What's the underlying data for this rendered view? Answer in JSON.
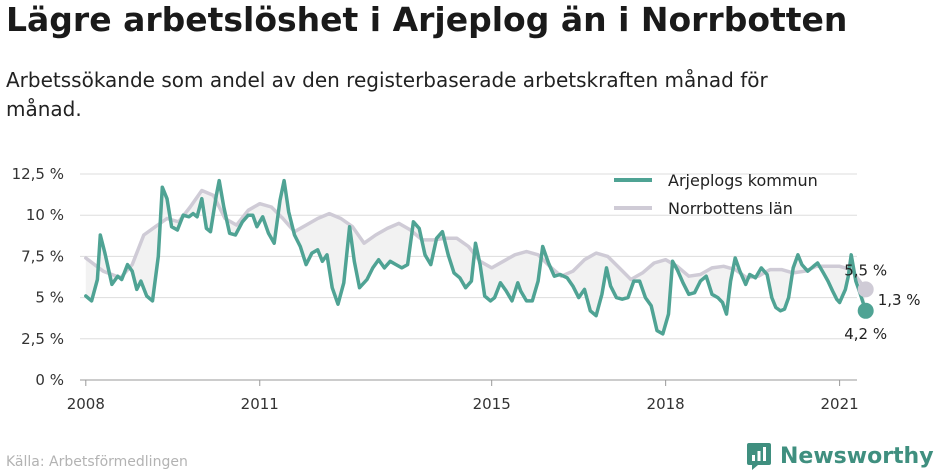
{
  "title": "Lägre arbetslöshet i Arjeplog än i Norrbotten",
  "subtitle": "Arbetssökande som andel av den registerbaserade arbetskraften månad för månad.",
  "source": "Källa: Arbetsförmedlingen",
  "brand": "Newsworthy",
  "colors": {
    "arjeplog": "#4fa394",
    "norrbotten": "#cfcbd6",
    "band": "#f2f2f2",
    "grid": "#dddddd",
    "brand": "#3f8f7f"
  },
  "chart_data": {
    "type": "line",
    "xlim": [
      2007.9,
      2021.3
    ],
    "ylim": [
      0,
      12.5
    ],
    "x_ticks": [
      {
        "value": 2008,
        "label": "2008"
      },
      {
        "value": 2011,
        "label": "2011"
      },
      {
        "value": 2015,
        "label": "2015"
      },
      {
        "value": 2018,
        "label": "2018"
      },
      {
        "value": 2021,
        "label": "2021"
      }
    ],
    "y_ticks": [
      {
        "value": 0,
        "label": "0 %"
      },
      {
        "value": 2.5,
        "label": "2,5 %"
      },
      {
        "value": 5,
        "label": "5 %"
      },
      {
        "value": 7.5,
        "label": "7,5 %"
      },
      {
        "value": 10,
        "label": "10 %"
      },
      {
        "value": 12.5,
        "label": "12,5 %"
      }
    ],
    "legend": [
      "Arjeplogs kommun",
      "Norrbottens län"
    ],
    "series": [
      {
        "name": "Arjeplogs kommun",
        "points": [
          [
            2008.0,
            5.1
          ],
          [
            2008.1,
            4.8
          ],
          [
            2008.2,
            6.1
          ],
          [
            2008.25,
            8.8
          ],
          [
            2008.33,
            7.7
          ],
          [
            2008.45,
            5.8
          ],
          [
            2008.55,
            6.3
          ],
          [
            2008.62,
            6.1
          ],
          [
            2008.72,
            7.0
          ],
          [
            2008.8,
            6.6
          ],
          [
            2008.88,
            5.5
          ],
          [
            2008.95,
            6.0
          ],
          [
            2009.05,
            5.1
          ],
          [
            2009.15,
            4.8
          ],
          [
            2009.25,
            7.5
          ],
          [
            2009.32,
            11.7
          ],
          [
            2009.4,
            11.0
          ],
          [
            2009.48,
            9.3
          ],
          [
            2009.58,
            9.1
          ],
          [
            2009.68,
            10.0
          ],
          [
            2009.78,
            9.9
          ],
          [
            2009.85,
            10.1
          ],
          [
            2009.92,
            9.9
          ],
          [
            2010.0,
            11.0
          ],
          [
            2010.08,
            9.2
          ],
          [
            2010.15,
            9.0
          ],
          [
            2010.25,
            11.2
          ],
          [
            2010.3,
            12.1
          ],
          [
            2010.38,
            10.5
          ],
          [
            2010.48,
            8.9
          ],
          [
            2010.58,
            8.8
          ],
          [
            2010.7,
            9.6
          ],
          [
            2010.8,
            10.0
          ],
          [
            2010.88,
            10.0
          ],
          [
            2010.95,
            9.3
          ],
          [
            2011.05,
            9.9
          ],
          [
            2011.15,
            8.9
          ],
          [
            2011.25,
            8.3
          ],
          [
            2011.35,
            10.9
          ],
          [
            2011.42,
            12.1
          ],
          [
            2011.5,
            10.2
          ],
          [
            2011.6,
            8.8
          ],
          [
            2011.7,
            8.1
          ],
          [
            2011.8,
            7.0
          ],
          [
            2011.9,
            7.7
          ],
          [
            2012.0,
            7.9
          ],
          [
            2012.08,
            7.2
          ],
          [
            2012.16,
            7.6
          ],
          [
            2012.25,
            5.6
          ],
          [
            2012.35,
            4.6
          ],
          [
            2012.45,
            5.9
          ],
          [
            2012.55,
            9.3
          ],
          [
            2012.63,
            7.2
          ],
          [
            2012.72,
            5.6
          ],
          [
            2012.85,
            6.1
          ],
          [
            2012.95,
            6.8
          ],
          [
            2013.05,
            7.3
          ],
          [
            2013.15,
            6.8
          ],
          [
            2013.25,
            7.2
          ],
          [
            2013.35,
            7.0
          ],
          [
            2013.45,
            6.8
          ],
          [
            2013.55,
            7.0
          ],
          [
            2013.65,
            9.6
          ],
          [
            2013.75,
            9.2
          ],
          [
            2013.85,
            7.6
          ],
          [
            2013.95,
            7.0
          ],
          [
            2014.05,
            8.6
          ],
          [
            2014.15,
            9.0
          ],
          [
            2014.25,
            7.6
          ],
          [
            2014.35,
            6.5
          ],
          [
            2014.45,
            6.2
          ],
          [
            2014.55,
            5.6
          ],
          [
            2014.65,
            6.0
          ],
          [
            2014.72,
            8.3
          ],
          [
            2014.8,
            7.0
          ],
          [
            2014.88,
            5.1
          ],
          [
            2014.98,
            4.8
          ],
          [
            2015.05,
            5.0
          ],
          [
            2015.15,
            5.9
          ],
          [
            2015.25,
            5.4
          ],
          [
            2015.35,
            4.8
          ],
          [
            2015.45,
            5.9
          ],
          [
            2015.5,
            5.4
          ],
          [
            2015.6,
            4.8
          ],
          [
            2015.7,
            4.8
          ],
          [
            2015.8,
            6.0
          ],
          [
            2015.88,
            8.1
          ],
          [
            2015.98,
            7.1
          ],
          [
            2016.08,
            6.3
          ],
          [
            2016.18,
            6.4
          ],
          [
            2016.3,
            6.2
          ],
          [
            2016.4,
            5.7
          ],
          [
            2016.5,
            5.0
          ],
          [
            2016.6,
            5.5
          ],
          [
            2016.7,
            4.2
          ],
          [
            2016.8,
            3.9
          ],
          [
            2016.9,
            5.2
          ],
          [
            2016.98,
            6.8
          ],
          [
            2017.05,
            5.7
          ],
          [
            2017.15,
            5.0
          ],
          [
            2017.25,
            4.9
          ],
          [
            2017.35,
            5.0
          ],
          [
            2017.45,
            6.0
          ],
          [
            2017.55,
            6.0
          ],
          [
            2017.65,
            5.0
          ],
          [
            2017.75,
            4.5
          ],
          [
            2017.85,
            3.0
          ],
          [
            2017.95,
            2.8
          ],
          [
            2018.05,
            4.0
          ],
          [
            2018.12,
            7.2
          ],
          [
            2018.2,
            6.7
          ],
          [
            2018.3,
            5.9
          ],
          [
            2018.4,
            5.2
          ],
          [
            2018.5,
            5.3
          ],
          [
            2018.6,
            6.0
          ],
          [
            2018.7,
            6.3
          ],
          [
            2018.8,
            5.2
          ],
          [
            2018.9,
            5.0
          ],
          [
            2018.98,
            4.7
          ],
          [
            2019.05,
            4.0
          ],
          [
            2019.12,
            6.0
          ],
          [
            2019.2,
            7.4
          ],
          [
            2019.28,
            6.6
          ],
          [
            2019.38,
            5.8
          ],
          [
            2019.45,
            6.4
          ],
          [
            2019.55,
            6.2
          ],
          [
            2019.65,
            6.8
          ],
          [
            2019.75,
            6.4
          ],
          [
            2019.83,
            5.0
          ],
          [
            2019.9,
            4.4
          ],
          [
            2019.98,
            4.2
          ],
          [
            2020.05,
            4.3
          ],
          [
            2020.12,
            5.0
          ],
          [
            2020.2,
            6.8
          ],
          [
            2020.28,
            7.6
          ],
          [
            2020.35,
            7.0
          ],
          [
            2020.45,
            6.6
          ],
          [
            2020.55,
            6.9
          ],
          [
            2020.62,
            7.1
          ],
          [
            2020.72,
            6.5
          ],
          [
            2020.8,
            6.0
          ],
          [
            2020.88,
            5.4
          ],
          [
            2020.95,
            4.9
          ],
          [
            2021.0,
            4.7
          ],
          [
            2021.1,
            5.5
          ],
          [
            2021.15,
            6.3
          ],
          [
            2021.2,
            7.6
          ],
          [
            2021.28,
            6.0
          ],
          [
            2021.35,
            5.3
          ],
          [
            2021.45,
            4.2
          ]
        ]
      },
      {
        "name": "Norrbottens län",
        "points": [
          [
            2008.0,
            7.4
          ],
          [
            2008.3,
            6.6
          ],
          [
            2008.6,
            6.2
          ],
          [
            2008.8,
            7.0
          ],
          [
            2009.0,
            8.8
          ],
          [
            2009.2,
            9.3
          ],
          [
            2009.4,
            9.8
          ],
          [
            2009.6,
            9.6
          ],
          [
            2009.8,
            10.5
          ],
          [
            2010.0,
            11.5
          ],
          [
            2010.2,
            11.2
          ],
          [
            2010.4,
            9.8
          ],
          [
            2010.6,
            9.4
          ],
          [
            2010.8,
            10.3
          ],
          [
            2011.0,
            10.7
          ],
          [
            2011.2,
            10.5
          ],
          [
            2011.4,
            9.8
          ],
          [
            2011.6,
            9.0
          ],
          [
            2011.8,
            9.4
          ],
          [
            2012.0,
            9.8
          ],
          [
            2012.2,
            10.1
          ],
          [
            2012.4,
            9.8
          ],
          [
            2012.6,
            9.3
          ],
          [
            2012.8,
            8.3
          ],
          [
            2013.0,
            8.8
          ],
          [
            2013.2,
            9.2
          ],
          [
            2013.4,
            9.5
          ],
          [
            2013.6,
            9.1
          ],
          [
            2013.8,
            8.5
          ],
          [
            2014.0,
            8.5
          ],
          [
            2014.2,
            8.6
          ],
          [
            2014.4,
            8.6
          ],
          [
            2014.6,
            8.1
          ],
          [
            2014.8,
            7.2
          ],
          [
            2015.0,
            6.8
          ],
          [
            2015.2,
            7.2
          ],
          [
            2015.4,
            7.6
          ],
          [
            2015.6,
            7.8
          ],
          [
            2015.8,
            7.6
          ],
          [
            2016.0,
            6.9
          ],
          [
            2016.2,
            6.3
          ],
          [
            2016.4,
            6.6
          ],
          [
            2016.6,
            7.3
          ],
          [
            2016.8,
            7.7
          ],
          [
            2017.0,
            7.5
          ],
          [
            2017.2,
            6.8
          ],
          [
            2017.4,
            6.1
          ],
          [
            2017.6,
            6.5
          ],
          [
            2017.8,
            7.1
          ],
          [
            2018.0,
            7.3
          ],
          [
            2018.2,
            6.9
          ],
          [
            2018.4,
            6.3
          ],
          [
            2018.6,
            6.4
          ],
          [
            2018.8,
            6.8
          ],
          [
            2019.0,
            6.9
          ],
          [
            2019.2,
            6.7
          ],
          [
            2019.4,
            6.2
          ],
          [
            2019.6,
            6.3
          ],
          [
            2019.8,
            6.7
          ],
          [
            2020.0,
            6.7
          ],
          [
            2020.2,
            6.5
          ],
          [
            2020.4,
            6.6
          ],
          [
            2020.6,
            6.9
          ],
          [
            2020.8,
            6.9
          ],
          [
            2021.0,
            6.9
          ],
          [
            2021.2,
            6.7
          ],
          [
            2021.45,
            5.5
          ]
        ]
      }
    ],
    "annotations": [
      {
        "text": "5,5 %",
        "series": "Norrbottens län"
      },
      {
        "text": "1,3 %",
        "meaning": "difference"
      },
      {
        "text": "4,2 %",
        "series": "Arjeplogs kommun"
      }
    ]
  }
}
